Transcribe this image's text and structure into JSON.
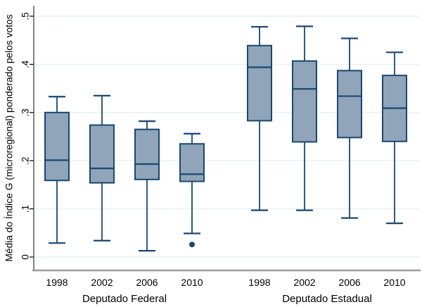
{
  "chart_data": {
    "type": "boxplot",
    "title": "",
    "xlabel": "",
    "ylabel": "Média do Índice G (microregional) ponderado pelos votos",
    "ylim": [
      -0.028,
      0.522
    ],
    "yticks": [
      0,
      0.1,
      0.2,
      0.3,
      0.4,
      0.5
    ],
    "ytick_labels": [
      "0",
      ".1",
      ".2",
      ".3",
      ".4",
      ".5"
    ],
    "grid": true,
    "legend": "none",
    "groups": [
      {
        "label": "Deputado Federal",
        "boxes": [
          {
            "category": "1998",
            "whisker_low": 0.029,
            "q1": 0.159,
            "median": 0.201,
            "q3": 0.3,
            "whisker_high": 0.333,
            "outliers": []
          },
          {
            "category": "2002",
            "whisker_low": 0.034,
            "q1": 0.154,
            "median": 0.184,
            "q3": 0.274,
            "whisker_high": 0.335,
            "outliers": []
          },
          {
            "category": "2006",
            "whisker_low": 0.013,
            "q1": 0.161,
            "median": 0.193,
            "q3": 0.265,
            "whisker_high": 0.282,
            "outliers": []
          },
          {
            "category": "2010",
            "whisker_low": 0.049,
            "q1": 0.157,
            "median": 0.172,
            "q3": 0.235,
            "whisker_high": 0.256,
            "outliers": [
              0.026
            ]
          }
        ]
      },
      {
        "label": "Deputado Estadual",
        "boxes": [
          {
            "category": "1998",
            "whisker_low": 0.097,
            "q1": 0.283,
            "median": 0.394,
            "q3": 0.439,
            "whisker_high": 0.478,
            "outliers": []
          },
          {
            "category": "2002",
            "whisker_low": 0.097,
            "q1": 0.239,
            "median": 0.349,
            "q3": 0.407,
            "whisker_high": 0.479,
            "outliers": []
          },
          {
            "category": "2006",
            "whisker_low": 0.081,
            "q1": 0.248,
            "median": 0.334,
            "q3": 0.387,
            "whisker_high": 0.454,
            "outliers": []
          },
          {
            "category": "2010",
            "whisker_low": 0.07,
            "q1": 0.24,
            "median": 0.309,
            "q3": 0.377,
            "whisker_high": 0.425,
            "outliers": []
          }
        ]
      }
    ],
    "colors": {
      "box_fill": "#90a5ba",
      "box_stroke": "#1a476f",
      "grid_line": "#e8f0f2",
      "axis_line": "#3f3f3f",
      "tick_color": "#000000",
      "bottom_border": "#9c9c9c",
      "text": "#000000",
      "background": "#ffffff"
    }
  }
}
